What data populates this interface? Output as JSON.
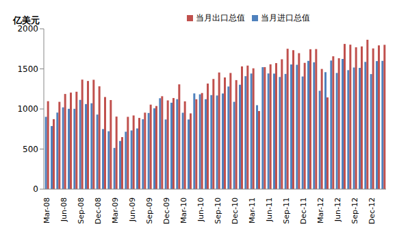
{
  "chart_data": {
    "type": "bar",
    "y_label": "亿美元",
    "categories": [
      "Mar-08",
      null,
      null,
      "Jun-08",
      null,
      null,
      "Sep-08",
      null,
      null,
      "Dec-08",
      null,
      null,
      "Mar-09",
      null,
      null,
      "Jun-09",
      null,
      null,
      "Sep-09",
      null,
      null,
      "Dec-09",
      null,
      null,
      "Mar-10",
      null,
      null,
      "Jun-10",
      null,
      null,
      "Sep-10",
      null,
      null,
      "Dec-10",
      null,
      null,
      "Mar-11",
      null,
      null,
      "Jun-11",
      null,
      null,
      "Sep-11",
      null,
      null,
      "Dec-11",
      null,
      null,
      "Mar-12",
      null,
      null,
      "Jun-12",
      null,
      null,
      "Sep-12",
      null,
      null,
      "Dec-12",
      null,
      null
    ],
    "series": [
      {
        "name": "当月进口总值",
        "color": "#4F81BD",
        "values": [
          902,
          787,
          955,
          1020,
          1002,
          1002,
          1113,
          1061,
          1071,
          930,
          749,
          722,
          514,
          601,
          716,
          732,
          757,
          872,
          950,
          1008,
          1134,
          869,
          1078,
          1122,
          953,
          869,
          1194,
          1183,
          1122,
          1173,
          1168,
          1193,
          1280,
          1089,
          1302,
          1409,
          1442,
          1047,
          1521,
          1443,
          1441,
          1399,
          1437,
          1555,
          1551,
          1405,
          1600,
          1582,
          1227,
          1459,
          1604,
          1449,
          1624,
          1484,
          1517,
          1513,
          1587,
          1435,
          1597,
          1600
        ]
      },
      {
        "name": "当月出口总值",
        "color": "#C0504D",
        "values": [
          1097,
          873,
          1089,
          1187,
          1204,
          1215,
          1366,
          1349,
          1364,
          1283,
          1149,
          1111,
          905,
          649,
          902,
          919,
          888,
          954,
          1054,
          1037,
          1159,
          1107,
          1136,
          1307,
          1095,
          945,
          1121,
          1199,
          1317,
          1374,
          1455,
          1393,
          1449,
          1360,
          1531,
          1541,
          1507,
          974,
          1522,
          1557,
          1572,
          1620,
          1751,
          1733,
          1696,
          1575,
          1745,
          1747,
          1499,
          1144,
          1657,
          1633,
          1811,
          1802,
          1769,
          1780,
          1863,
          1755,
          1793,
          1800
        ]
      }
    ],
    "ylim": [
      0,
      2000
    ],
    "yticks": [
      0,
      500,
      1000,
      1500,
      2000
    ],
    "grid": false,
    "legend": "top"
  }
}
